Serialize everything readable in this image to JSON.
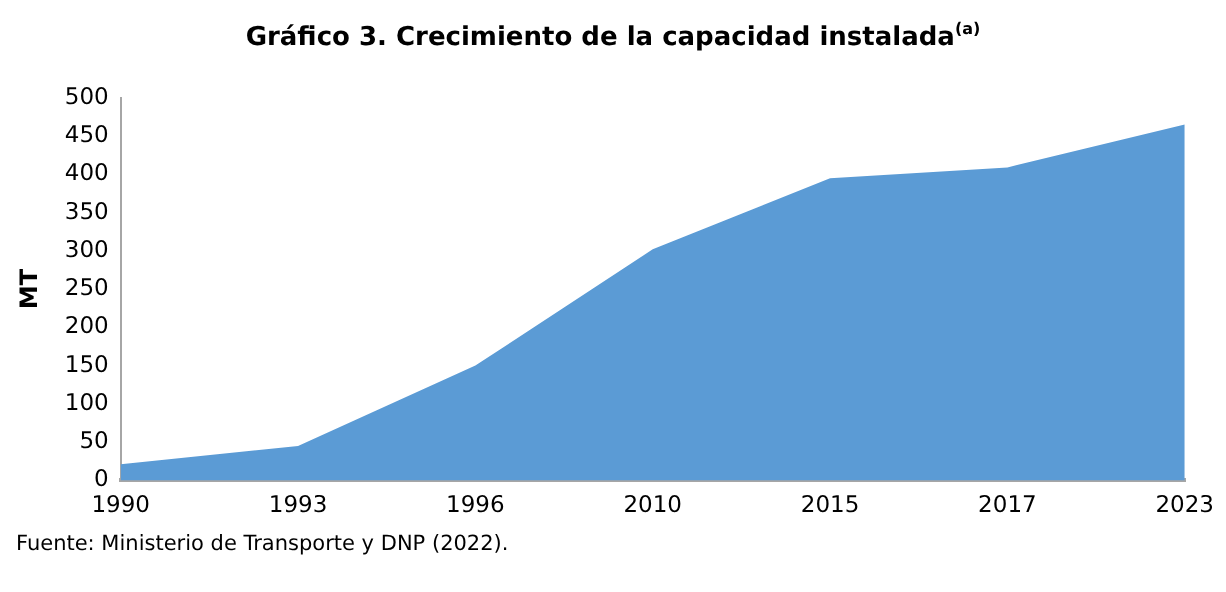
{
  "chart_data": {
    "type": "area",
    "title": "Gráfico 3. Crecimiento de la capacidad instalada$^{(a)}$",
    "ylabel": "MT",
    "categories": [
      "1990",
      "1993",
      "1996",
      "2010",
      "2015",
      "2017",
      "2023"
    ],
    "values": [
      21,
      45,
      150,
      302,
      395,
      409,
      465
    ],
    "color": "#5b9bd5",
    "ylim": [
      0,
      500
    ],
    "yticks": [
      0,
      50,
      100,
      150,
      200,
      250,
      300,
      350,
      400,
      450,
      500
    ],
    "grid": false,
    "legend": false,
    "annotations": [
      "Fuente: Ministerio de Transporte y DNP (2022)."
    ]
  }
}
